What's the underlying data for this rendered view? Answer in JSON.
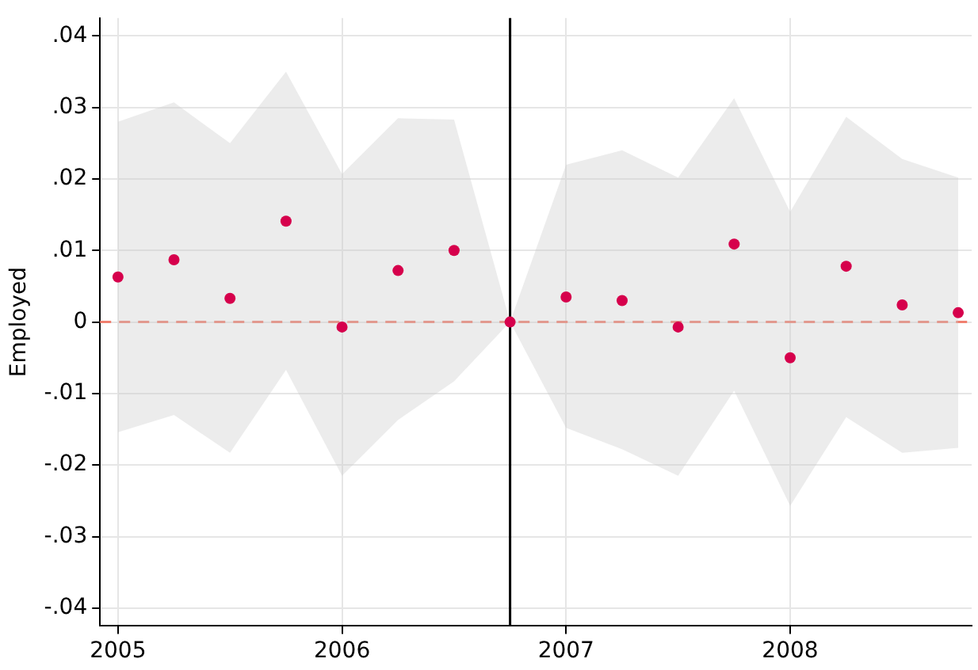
{
  "chart_data": {
    "type": "scatter",
    "ylabel": "Employed",
    "marker": "circle",
    "grid": true,
    "x": [
      2005,
      2005.25,
      2005.5,
      2005.75,
      2006,
      2006.25,
      2006.5,
      2006.75,
      2007,
      2007.25,
      2007.5,
      2007.75,
      2008,
      2008.25,
      2008.5,
      2008.75
    ],
    "series": [
      {
        "color": "#d6004c",
        "values": [
          0.0063,
          0.0087,
          0.0033,
          0.0141,
          -0.0007,
          0.0072,
          0.01,
          0,
          0.0035,
          0.003,
          -0.0007,
          0.0109,
          -0.005,
          0.0078,
          0.0024,
          0.0013
        ],
        "upper": [
          0.028,
          0.0307,
          0.025,
          0.035,
          0.0207,
          0.0285,
          0.0283,
          0,
          0.022,
          0.024,
          0.0202,
          0.0313,
          0.0154,
          0.0287,
          0.0228,
          0.0202
        ],
        "lower": [
          -0.0154,
          -0.013,
          -0.0183,
          -0.0067,
          -0.0215,
          -0.0137,
          -0.0083,
          0,
          -0.0148,
          -0.0178,
          -0.0215,
          -0.0096,
          -0.0257,
          -0.0133,
          -0.0183,
          -0.0176
        ]
      }
    ],
    "xlim": [
      2004.92,
      2008.81
    ],
    "xticks": [
      2005,
      2006,
      2007,
      2008
    ],
    "ylim": [
      -0.0425,
      0.0425
    ],
    "yticks": [
      {
        "value": -0.04,
        "label": "-.04"
      },
      {
        "value": -0.03,
        "label": "-.03"
      },
      {
        "value": -0.02,
        "label": "-.02"
      },
      {
        "value": -0.01,
        "label": "-.01"
      },
      0,
      {
        "value": 0.01,
        "label": ".01"
      },
      {
        "value": 0.02,
        "label": ".02"
      },
      {
        "value": 0.03,
        "label": ".03"
      },
      {
        "value": 0.04,
        "label": ".04"
      }
    ],
    "ref_lines": [
      {
        "axis": "y",
        "value": 0,
        "color": "#f08070",
        "line_style": "dashed"
      },
      {
        "axis": "x",
        "value": 2006.75,
        "color": "#000000",
        "line_style": "solid"
      }
    ]
  }
}
